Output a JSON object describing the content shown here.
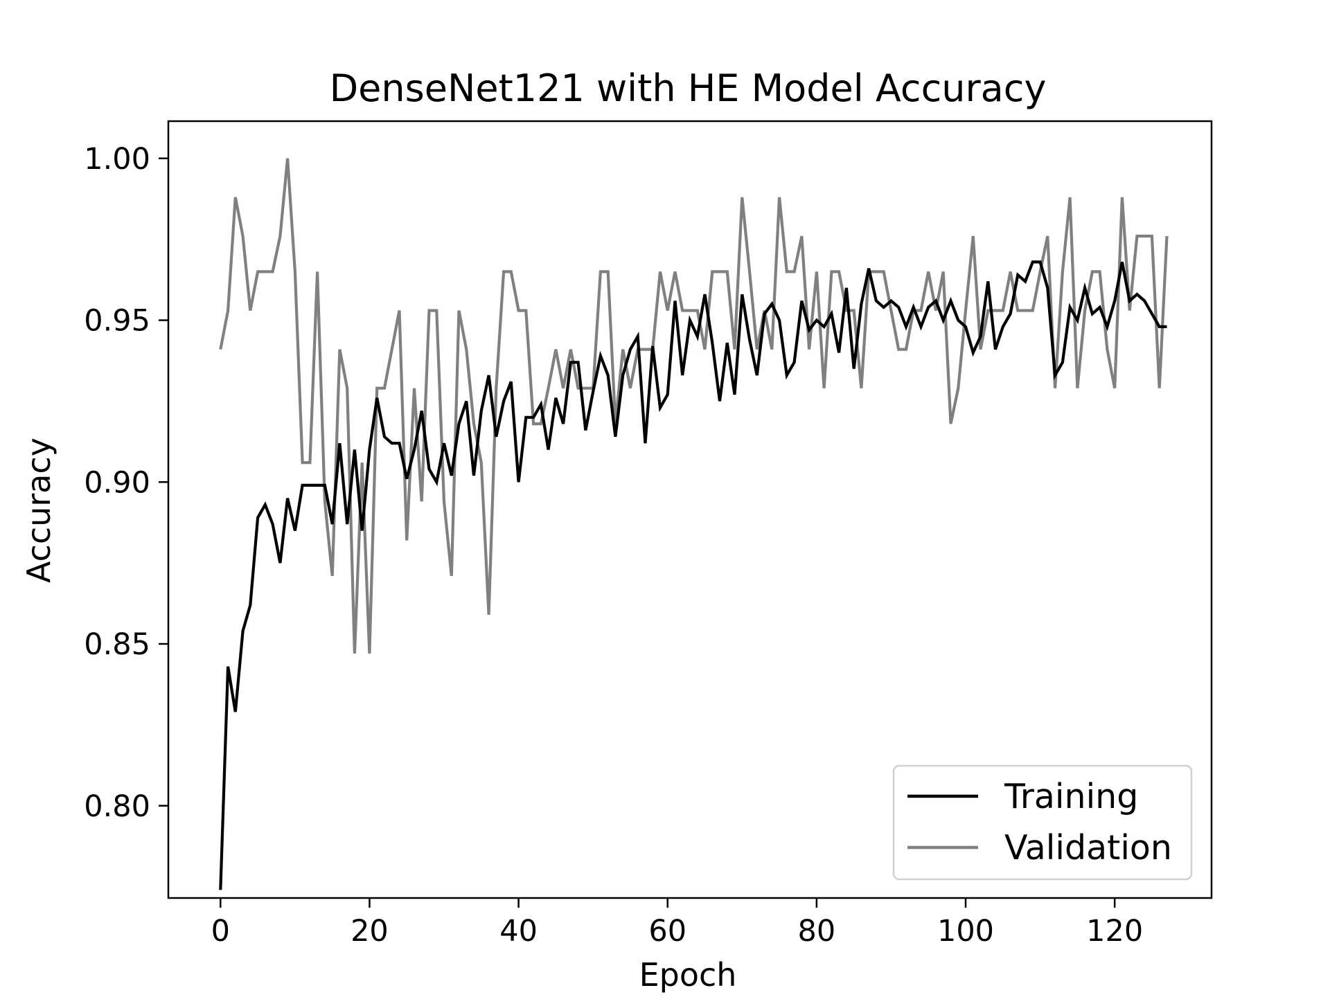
{
  "chart_data": {
    "type": "line",
    "title": "DenseNet121 with HE Model Accuracy",
    "xlabel": "Epoch",
    "ylabel": "Accuracy",
    "xlim": [
      -7,
      133
    ],
    "ylim": [
      0.7715,
      1.0115
    ],
    "xticks": [
      0,
      20,
      40,
      60,
      80,
      100,
      120
    ],
    "xtick_labels": [
      "0",
      "20",
      "40",
      "60",
      "80",
      "100",
      "120"
    ],
    "yticks": [
      0.8,
      0.85,
      0.9,
      0.95,
      1.0
    ],
    "ytick_labels": [
      "0.80",
      "0.85",
      "0.90",
      "0.95",
      "1.00"
    ],
    "grid": false,
    "legend": {
      "position": "lower-right",
      "entries": [
        "Training",
        "Validation"
      ]
    },
    "x": [
      0,
      1,
      2,
      3,
      4,
      5,
      6,
      7,
      8,
      9,
      10,
      11,
      12,
      13,
      14,
      15,
      16,
      17,
      18,
      19,
      20,
      21,
      22,
      23,
      24,
      25,
      26,
      27,
      28,
      29,
      30,
      31,
      32,
      33,
      34,
      35,
      36,
      37,
      38,
      39,
      40,
      41,
      42,
      43,
      44,
      45,
      46,
      47,
      48,
      49,
      50,
      51,
      52,
      53,
      54,
      55,
      56,
      57,
      58,
      59,
      60,
      61,
      62,
      63,
      64,
      65,
      66,
      67,
      68,
      69,
      70,
      71,
      72,
      73,
      74,
      75,
      76,
      77,
      78,
      79,
      80,
      81,
      82,
      83,
      84,
      85,
      86,
      87,
      88,
      89,
      90,
      91,
      92,
      93,
      94,
      95,
      96,
      97,
      98,
      99,
      100,
      101,
      102,
      103,
      104,
      105,
      106,
      107,
      108,
      109,
      110,
      111,
      112,
      113,
      114,
      115,
      116,
      117,
      118,
      119,
      120,
      121,
      122,
      123,
      124,
      125,
      126,
      127
    ],
    "series": [
      {
        "name": "Training",
        "color": "#000000",
        "values": [
          0.774,
          0.843,
          0.829,
          0.854,
          0.862,
          0.889,
          0.893,
          0.887,
          0.875,
          0.895,
          0.885,
          0.899,
          0.899,
          0.899,
          0.899,
          0.887,
          0.912,
          0.887,
          0.91,
          0.885,
          0.91,
          0.926,
          0.914,
          0.912,
          0.912,
          0.901,
          0.91,
          0.922,
          0.904,
          0.9,
          0.912,
          0.902,
          0.918,
          0.925,
          0.902,
          0.922,
          0.933,
          0.914,
          0.925,
          0.931,
          0.9,
          0.92,
          0.92,
          0.924,
          0.91,
          0.926,
          0.918,
          0.937,
          0.937,
          0.916,
          0.928,
          0.939,
          0.933,
          0.914,
          0.933,
          0.941,
          0.945,
          0.912,
          0.942,
          0.923,
          0.927,
          0.956,
          0.933,
          0.95,
          0.945,
          0.958,
          0.943,
          0.925,
          0.943,
          0.927,
          0.958,
          0.944,
          0.933,
          0.952,
          0.955,
          0.95,
          0.933,
          0.937,
          0.956,
          0.947,
          0.95,
          0.948,
          0.952,
          0.94,
          0.96,
          0.935,
          0.955,
          0.966,
          0.956,
          0.954,
          0.956,
          0.954,
          0.948,
          0.954,
          0.948,
          0.954,
          0.956,
          0.95,
          0.956,
          0.95,
          0.948,
          0.94,
          0.945,
          0.962,
          0.941,
          0.948,
          0.952,
          0.964,
          0.962,
          0.968,
          0.968,
          0.96,
          0.933,
          0.937,
          0.954,
          0.95,
          0.96,
          0.952,
          0.954,
          0.948,
          0.956,
          0.968,
          0.956,
          0.958,
          0.956,
          0.952,
          0.948,
          0.948
        ]
      },
      {
        "name": "Validation",
        "color": "#808080",
        "values": [
          0.941,
          0.953,
          0.988,
          0.976,
          0.953,
          0.965,
          0.965,
          0.965,
          0.976,
          1.0,
          0.965,
          0.906,
          0.906,
          0.965,
          0.894,
          0.871,
          0.941,
          0.929,
          0.847,
          0.906,
          0.847,
          0.929,
          0.929,
          0.941,
          0.953,
          0.882,
          0.929,
          0.894,
          0.953,
          0.953,
          0.894,
          0.871,
          0.953,
          0.941,
          0.918,
          0.906,
          0.859,
          0.929,
          0.965,
          0.965,
          0.953,
          0.953,
          0.918,
          0.918,
          0.929,
          0.941,
          0.929,
          0.941,
          0.929,
          0.929,
          0.929,
          0.965,
          0.965,
          0.918,
          0.941,
          0.929,
          0.941,
          0.941,
          0.941,
          0.965,
          0.953,
          0.965,
          0.953,
          0.953,
          0.953,
          0.941,
          0.965,
          0.965,
          0.965,
          0.941,
          0.988,
          0.965,
          0.941,
          0.953,
          0.941,
          0.988,
          0.965,
          0.965,
          0.976,
          0.941,
          0.965,
          0.929,
          0.965,
          0.965,
          0.953,
          0.953,
          0.929,
          0.965,
          0.965,
          0.965,
          0.953,
          0.941,
          0.941,
          0.953,
          0.953,
          0.965,
          0.953,
          0.965,
          0.918,
          0.929,
          0.953,
          0.976,
          0.941,
          0.953,
          0.953,
          0.953,
          0.965,
          0.953,
          0.953,
          0.953,
          0.965,
          0.976,
          0.929,
          0.965,
          0.988,
          0.929,
          0.953,
          0.965,
          0.965,
          0.941,
          0.929,
          0.988,
          0.953,
          0.976,
          0.976,
          0.976,
          0.929,
          0.976
        ]
      }
    ]
  }
}
